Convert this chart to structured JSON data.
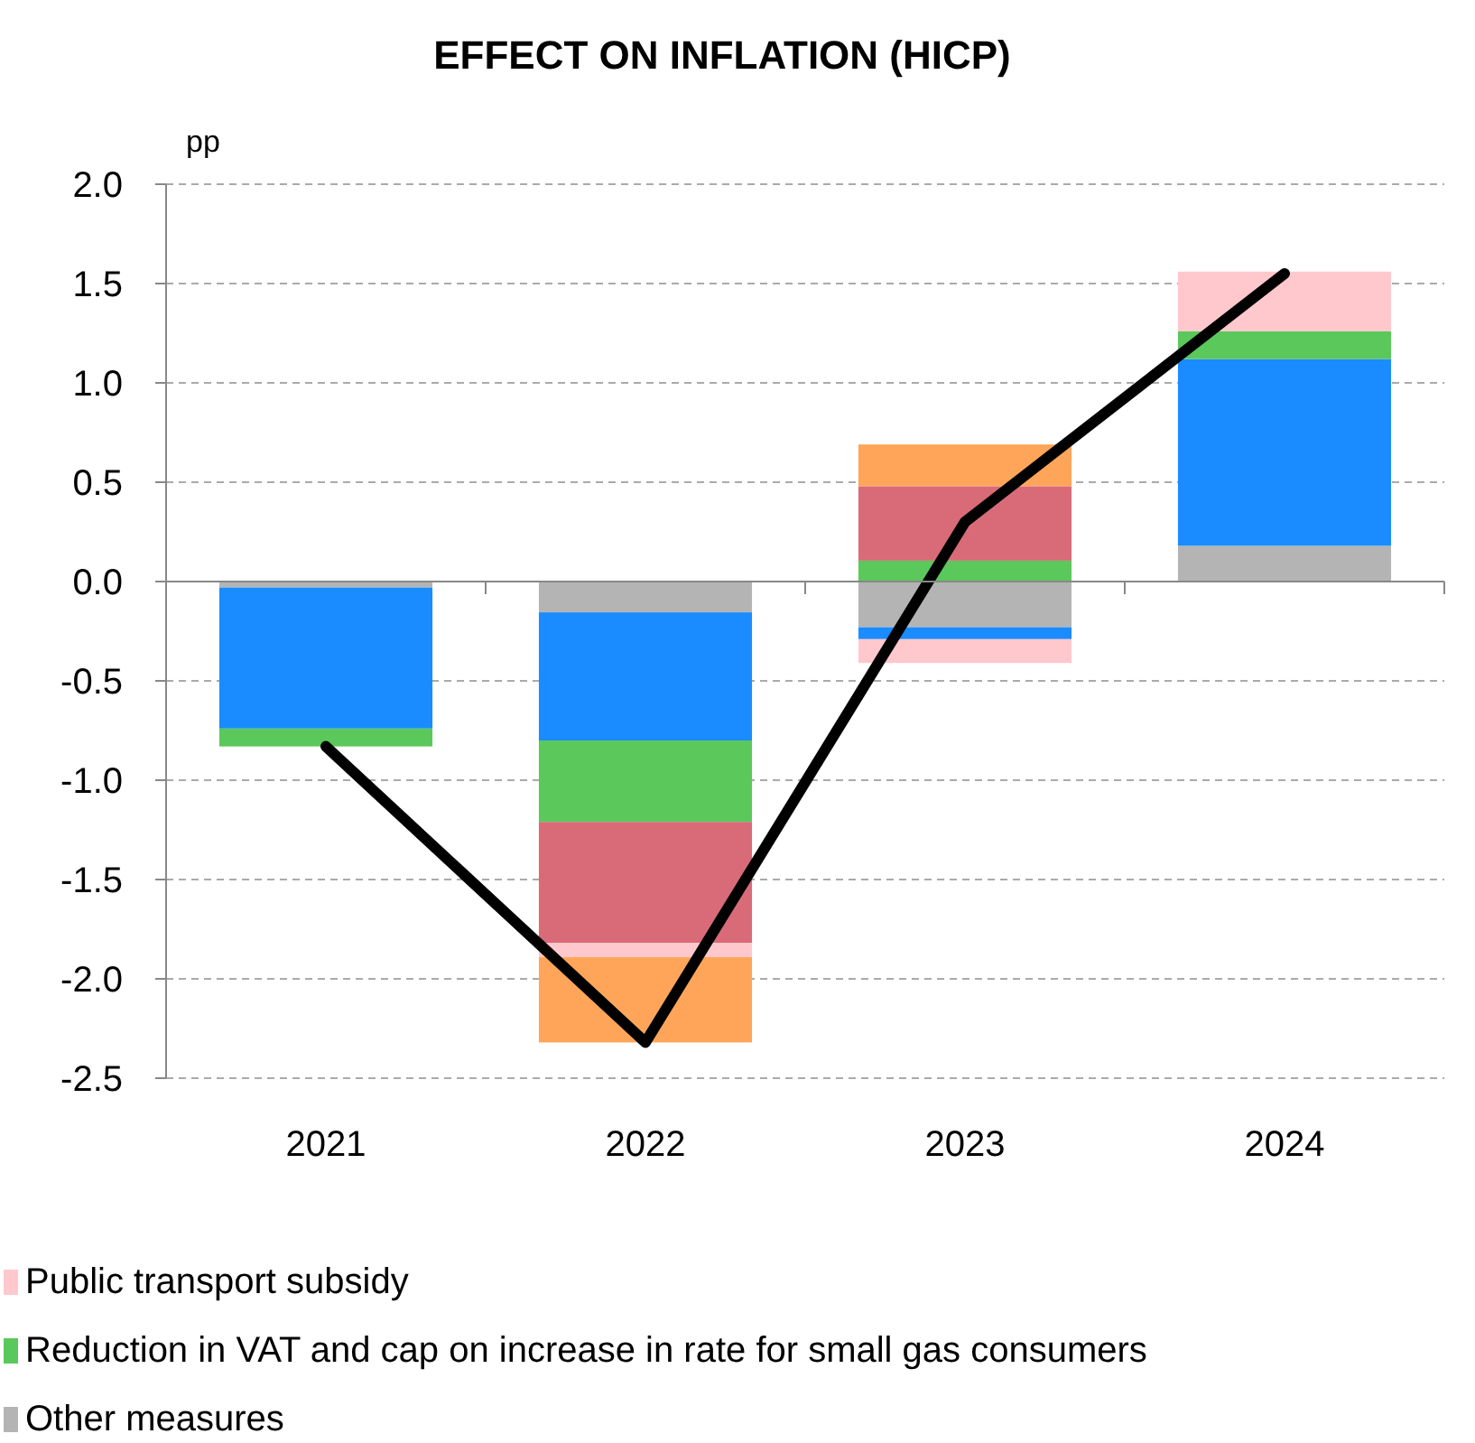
{
  "chart_data": {
    "type": "bar",
    "stacked": true,
    "title": "EFFECT ON INFLATION (HICP)",
    "ylabel": "pp",
    "categories": [
      "2021",
      "2022",
      "2023",
      "2024"
    ],
    "series": [
      {
        "name": "Other measures",
        "color": "#b4b4b4",
        "values": [
          -0.03,
          -0.155,
          -0.23,
          0.18
        ]
      },
      {
        "color": "#1a8cff",
        "values": [
          -0.71,
          -0.645,
          -0.06,
          0.94
        ]
      },
      {
        "name": "Reduction in VAT and cap on increase in rate for small gas consumers",
        "color": "#5bc85b",
        "values": [
          -0.09,
          -0.41,
          0.105,
          0.14
        ]
      },
      {
        "color": "#d96b78",
        "values": [
          null,
          -0.61,
          0.375,
          null
        ]
      },
      {
        "name": "Public transport subsidy",
        "color": "#ffc8cd",
        "values": [
          null,
          -0.07,
          -0.12,
          0.3
        ]
      },
      {
        "color": "#ffa55a",
        "values": [
          null,
          -0.43,
          0.21,
          null
        ]
      },
      {
        "type": "line",
        "color": "#000000",
        "values": [
          -0.83,
          -2.32,
          0.3,
          1.55
        ]
      }
    ],
    "ylim": [
      -2.5,
      2.0
    ],
    "yticks": [
      {
        "value": -2.5,
        "label": "-2.5"
      },
      {
        "value": -2.0,
        "label": "-2.0"
      },
      {
        "value": -1.5,
        "label": "-1.5"
      },
      {
        "value": -1.0,
        "label": "-1.0"
      },
      {
        "value": -0.5,
        "label": "-0.5"
      },
      {
        "value": 0,
        "label": "0.0"
      },
      {
        "value": 0.5,
        "label": "0.5"
      },
      {
        "value": 1.0,
        "label": "1.0"
      },
      {
        "value": 1.5,
        "label": "1.5"
      },
      {
        "value": 2.0,
        "label": "2.0"
      }
    ],
    "grid": "y",
    "legend": "bottom",
    "marker": "none",
    "line_style": "solid"
  }
}
